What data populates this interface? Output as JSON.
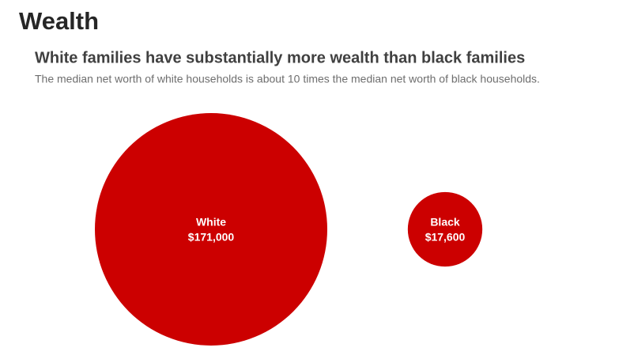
{
  "header": {
    "title": "Wealth"
  },
  "chart_data": {
    "type": "bubble",
    "title": "White families have substantially more wealth than black families",
    "subtitle": "The median net worth of white households is about 10 times the median net worth of black households.",
    "categories": [
      "White",
      "Black"
    ],
    "values": [
      171000,
      17600
    ],
    "value_labels": [
      "$171,000",
      "$17,600"
    ],
    "color": "#cc0000"
  }
}
